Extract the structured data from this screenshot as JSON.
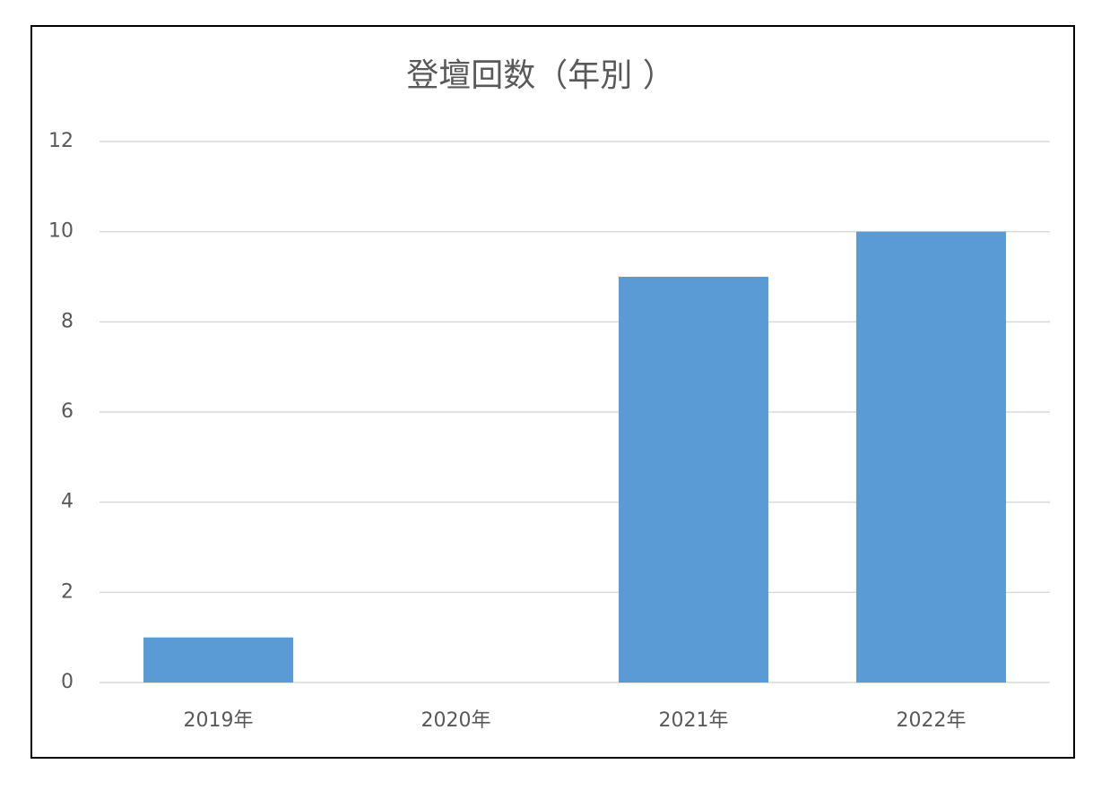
{
  "chart_data": {
    "type": "bar",
    "title": "登壇回数（年別 ）",
    "categories": [
      "2019年",
      "2020年",
      "2021年",
      "2022年"
    ],
    "values": [
      1,
      0,
      9,
      10
    ],
    "color": "#5b9bd5",
    "ylim": [
      0,
      12
    ],
    "yticks": [
      0,
      2,
      4,
      6,
      8,
      10,
      12
    ],
    "grid": true
  }
}
